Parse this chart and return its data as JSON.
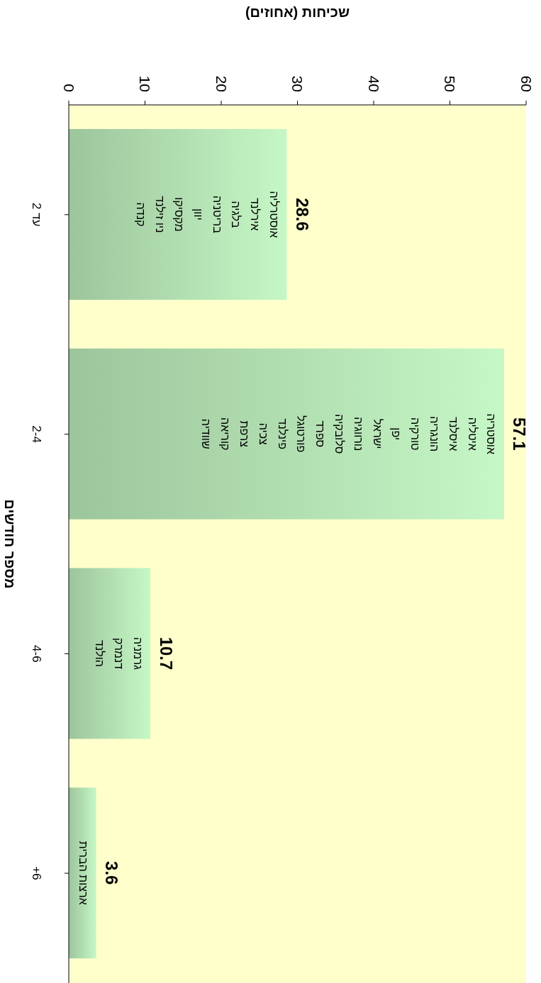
{
  "chart_data": {
    "type": "bar",
    "orientation": "horizontal",
    "xlabel": "שכיחות (אחוזים)",
    "ylabel": "מספר חודשים",
    "categories": [
      "עד 2",
      "2-4",
      "4-6",
      "6+"
    ],
    "values": [
      28.6,
      57.1,
      10.7,
      3.6
    ],
    "color": "#c6f7c6",
    "data_labels": true,
    "xlim": [
      0,
      60
    ],
    "xticks": [
      0,
      10,
      20,
      30,
      40,
      50,
      60
    ],
    "grid": false,
    "legend": false,
    "annotations": [
      "אוסטרליה\nאירלנד\nבלגיה\nבריטניה\nיוון\nמקסיקו\nניו זילנד\nקנדה",
      "אוסטריה\nאיטליה\nאיסלנד\nהונגריה\nטורקיה\nיפן\nישראל\nנורווגיה\nסלובקיה\nספרד\nפורטוגל\nפינלנד\nצכיה\nצרפת\nקוריאה\nשוודיה",
      "גרמניה\nדנמרק\nהולנד",
      "ארצות הברית"
    ]
  }
}
